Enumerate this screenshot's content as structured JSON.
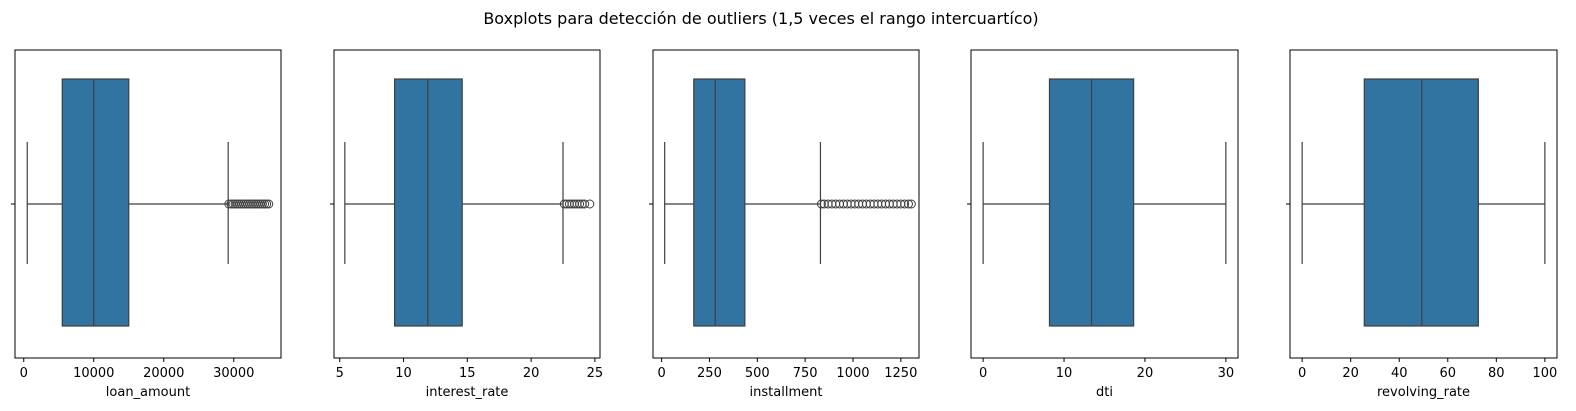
{
  "figure": {
    "title": "Boxplots para detección de outliers (1,5 veces el rango intercuartíco)"
  },
  "style": {
    "box_fill": "#3274a1",
    "line_color": "#3f3f3f",
    "outlier_edge": "#3f3f3f"
  },
  "chart_data": [
    {
      "type": "box",
      "xlabel": "loan_amount",
      "xlim": [
        -1250,
        36750
      ],
      "ticks": [
        0,
        10000,
        20000,
        30000
      ],
      "tick_labels": [
        "0",
        "10000",
        "20000",
        "30000"
      ],
      "box": {
        "whisker_low": 500,
        "q1": 5500,
        "median": 10000,
        "q3": 15000,
        "whisker_high": 29200
      },
      "outliers": [
        29300,
        29600,
        29900,
        30200,
        30500,
        30800,
        31100,
        31400,
        31700,
        32000,
        32300,
        32600,
        32900,
        33200,
        33500,
        33800,
        34100,
        34400,
        34700,
        35000
      ]
    },
    {
      "type": "box",
      "xlabel": "interest_rate",
      "xlim": [
        4.55,
        25.4
      ],
      "ticks": [
        5,
        10,
        15,
        20,
        25
      ],
      "tick_labels": [
        "5",
        "10",
        "15",
        "20",
        "25"
      ],
      "box": {
        "whisker_low": 5.4,
        "q1": 9.3,
        "median": 11.9,
        "q3": 14.6,
        "whisker_high": 22.5
      },
      "outliers": [
        22.6,
        22.8,
        23.0,
        23.2,
        23.4,
        23.6,
        23.8,
        24.0,
        24.2,
        24.6
      ]
    },
    {
      "type": "box",
      "xlabel": "installment",
      "xlim": [
        -45,
        1345
      ],
      "ticks": [
        0,
        250,
        500,
        750,
        1000,
        1250
      ],
      "tick_labels": [
        "0",
        "250",
        "500",
        "750",
        "1000",
        "1250"
      ],
      "box": {
        "whisker_low": 16,
        "q1": 168,
        "median": 280,
        "q3": 435,
        "whisker_high": 830
      },
      "outliers": [
        835,
        850,
        870,
        890,
        910,
        930,
        950,
        970,
        990,
        1010,
        1030,
        1050,
        1070,
        1090,
        1110,
        1130,
        1150,
        1170,
        1190,
        1210,
        1230,
        1250,
        1270,
        1290,
        1305
      ]
    },
    {
      "type": "box",
      "xlabel": "dti",
      "xlim": [
        -1.5,
        31.5
      ],
      "ticks": [
        0,
        10,
        20,
        30
      ],
      "tick_labels": [
        "0",
        "10",
        "20",
        "30"
      ],
      "box": {
        "whisker_low": 0,
        "q1": 8.2,
        "median": 13.4,
        "q3": 18.6,
        "whisker_high": 30
      },
      "outliers": []
    },
    {
      "type": "box",
      "xlabel": "revolving_rate",
      "xlim": [
        -5,
        105
      ],
      "ticks": [
        0,
        20,
        40,
        60,
        80,
        100
      ],
      "tick_labels": [
        "0",
        "20",
        "40",
        "60",
        "80",
        "100"
      ],
      "box": {
        "whisker_low": 0,
        "q1": 25.6,
        "median": 49.3,
        "q3": 72.6,
        "whisker_high": 100
      },
      "outliers": []
    }
  ]
}
